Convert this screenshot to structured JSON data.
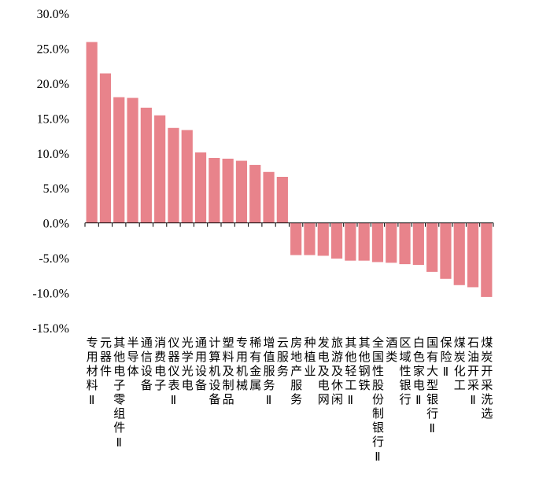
{
  "chart_data": {
    "type": "bar",
    "categories": [
      "专用材料Ⅱ",
      "元器件",
      "其他电子零组件Ⅱ",
      "半导体",
      "通信设备",
      "消费电子",
      "仪器仪表Ⅱ",
      "光学光电",
      "通用设备",
      "计算机设备",
      "塑料及制品",
      "专用机械",
      "稀有金属",
      "增值服务Ⅱ",
      "云服务",
      "房地产服务",
      "种植业",
      "发电及电网",
      "旅游及休闲",
      "其他轻工Ⅱ",
      "其他钢铁",
      "全国性股份制银行Ⅱ",
      "酒类",
      "区域性银行",
      "白色家电Ⅱ",
      "国有大型银行Ⅱ",
      "保险Ⅱ",
      "煤炭化工",
      "石油开采Ⅱ",
      "煤炭开采洗选"
    ],
    "values": [
      25.9,
      21.4,
      18.0,
      17.9,
      16.5,
      15.4,
      13.6,
      13.3,
      10.1,
      9.3,
      9.2,
      8.9,
      8.3,
      7.3,
      6.6,
      -4.6,
      -4.6,
      -4.7,
      -5.1,
      -5.4,
      -5.4,
      -5.6,
      -5.7,
      -5.9,
      -6.0,
      -7.0,
      -8.0,
      -8.9,
      -9.2,
      -10.6
    ],
    "color": "#e8838b",
    "ylim": [
      -15,
      30
    ],
    "yticks": [
      {
        "value": -15,
        "label": "-15.0%"
      },
      {
        "value": -10,
        "label": "-10.0%"
      },
      {
        "value": -5,
        "label": "-5.0%"
      },
      {
        "value": 0,
        "label": "0.0%"
      },
      {
        "value": 5,
        "label": "5.0%"
      },
      {
        "value": 10,
        "label": "10.0%"
      },
      {
        "value": 15,
        "label": "15.0%"
      },
      {
        "value": 20,
        "label": "20.0%"
      },
      {
        "value": 25,
        "label": "25.0%"
      },
      {
        "value": 30,
        "label": "30.0%"
      }
    ]
  }
}
